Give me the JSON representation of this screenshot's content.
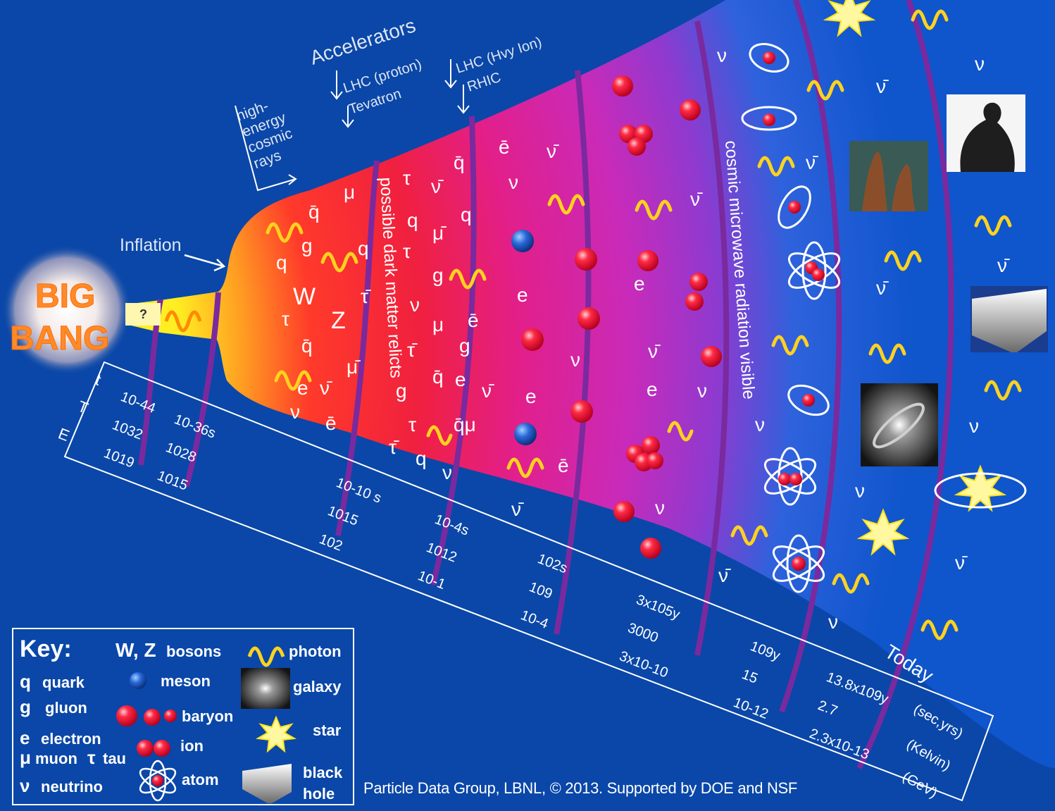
{
  "big_bang": {
    "line1": "BIG",
    "line2": "BANG",
    "unknown_marker": "?"
  },
  "labels": {
    "inflation": "Inflation",
    "accelerators": "Accelerators",
    "cosmic_rays": [
      "high-",
      "energy",
      "cosmic",
      "rays"
    ],
    "lhc_proton": "LHC (proton)",
    "tevatron": "Tevatron",
    "lhc_heavy_ion": "LHC (Hvy Ion)",
    "rhic": "RHIC",
    "dark_matter": "possible dark matter relicts",
    "cmb": "cosmic microwave radiation visible",
    "today": "Today"
  },
  "axis": {
    "row_labels": [
      "t",
      "T",
      "E"
    ],
    "ticks": [
      {
        "t": "10-44",
        "T": "1032",
        "E": "1019"
      },
      {
        "t": "10-36s",
        "T": "1028",
        "E": "1015"
      },
      {
        "t": "10-10 s",
        "T": "1015",
        "E": "102"
      },
      {
        "t": "10-4s",
        "T": "1012",
        "E": "10-1"
      },
      {
        "t": "102s",
        "T": "109",
        "E": "10-4"
      },
      {
        "t": "3x105y",
        "T": "3000",
        "E": "3x10-10"
      },
      {
        "t": "109y",
        "T": "15",
        "E": "10-12"
      },
      {
        "t": "13.8x109y",
        "T": "2.7",
        "E": "2.3x10-13"
      }
    ],
    "units": [
      "(sec,yrs)",
      "(Kelvin)",
      "(GeV)"
    ]
  },
  "key": {
    "title": "Key:",
    "items": [
      {
        "symbol": "q",
        "label": "quark"
      },
      {
        "symbol": "g",
        "label": "gluon"
      },
      {
        "symbol": "e",
        "label": "electron"
      },
      {
        "symbol": "μ",
        "label": "muon"
      },
      {
        "symbol": "τ",
        "label": "tau"
      },
      {
        "symbol": "ν",
        "label": "neutrino"
      },
      {
        "symbol": "W, Z",
        "label": "bosons"
      },
      {
        "symbol": "meson-icon",
        "label": "meson"
      },
      {
        "symbol": "baryon-icon",
        "label": "baryon"
      },
      {
        "symbol": "ion-icon",
        "label": "ion"
      },
      {
        "symbol": "atom-icon",
        "label": "atom"
      },
      {
        "symbol": "photon-icon",
        "label": "photon"
      },
      {
        "symbol": "galaxy-icon",
        "label": "galaxy"
      },
      {
        "symbol": "star-icon",
        "label": "star"
      },
      {
        "symbol": "black-hole-icon",
        "label": "black hole"
      }
    ]
  },
  "credit": "Particle Data Group, LBNL, © 2013.    Supported by DOE and NSF",
  "colors": {
    "background": "#0a47a8",
    "hot": "#ffe21a",
    "quark_era": "#f2283c",
    "plasma": "#d72aa8",
    "dark_blue": "#1c5ed3",
    "photon": "#ffd21f",
    "particle": "#e8123a",
    "epoch_line": "#7a2a9e"
  }
}
